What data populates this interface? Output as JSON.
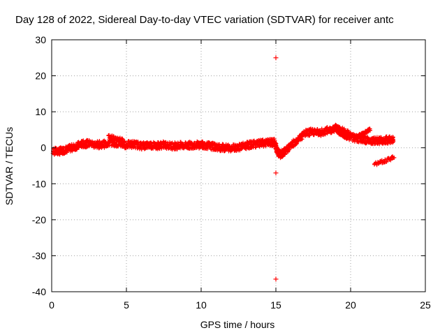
{
  "chart_data": {
    "type": "scatter",
    "title": "Day 128 of 2022, Sidereal Day-to-day VTEC variation (SDTVAR) for receiver antc",
    "xlabel": "GPS time / hours",
    "ylabel": "SDTVAR / TECUs",
    "xlim": [
      0,
      25
    ],
    "ylim": [
      -40,
      30
    ],
    "xticks": [
      0,
      5,
      10,
      15,
      20,
      25
    ],
    "yticks": [
      -40,
      -30,
      -20,
      -10,
      0,
      10,
      20,
      30
    ],
    "grid": true,
    "marker": "+",
    "colors": {
      "series": "#ff0000",
      "grid": "#a0a0a0",
      "axis": "#000000"
    },
    "series": [
      {
        "name": "SDTVAR",
        "band_centerline": [
          [
            0.1,
            -1.0
          ],
          [
            0.5,
            -1.0
          ],
          [
            1.0,
            -0.5
          ],
          [
            1.5,
            0.2
          ],
          [
            2.0,
            1.0
          ],
          [
            2.5,
            1.2
          ],
          [
            3.0,
            0.8
          ],
          [
            3.5,
            1.0
          ],
          [
            4.0,
            1.5
          ],
          [
            4.5,
            1.2
          ],
          [
            5.0,
            0.8
          ],
          [
            5.5,
            1.0
          ],
          [
            6.0,
            0.5
          ],
          [
            6.5,
            0.8
          ],
          [
            7.0,
            0.6
          ],
          [
            7.5,
            0.8
          ],
          [
            8.0,
            0.5
          ],
          [
            8.5,
            0.6
          ],
          [
            9.0,
            0.6
          ],
          [
            9.5,
            0.8
          ],
          [
            10.0,
            0.8
          ],
          [
            10.5,
            0.6
          ],
          [
            11.0,
            0.2
          ],
          [
            11.5,
            0.0
          ],
          [
            12.0,
            0.0
          ],
          [
            12.5,
            0.2
          ],
          [
            13.0,
            0.6
          ],
          [
            13.5,
            1.0
          ],
          [
            14.0,
            1.2
          ],
          [
            14.5,
            1.4
          ],
          [
            14.9,
            1.5
          ],
          [
            15.1,
            -1.0
          ],
          [
            15.3,
            -2.0
          ],
          [
            15.6,
            -1.0
          ],
          [
            16.0,
            0.5
          ],
          [
            16.5,
            2.5
          ],
          [
            17.0,
            4.0
          ],
          [
            17.5,
            4.5
          ],
          [
            18.0,
            4.2
          ],
          [
            18.5,
            4.8
          ],
          [
            19.0,
            5.5
          ],
          [
            19.3,
            4.5
          ],
          [
            19.6,
            3.5
          ],
          [
            20.0,
            3.0
          ],
          [
            20.5,
            2.5
          ],
          [
            21.0,
            2.2
          ],
          [
            21.5,
            2.0
          ],
          [
            22.0,
            2.0
          ],
          [
            22.5,
            2.2
          ],
          [
            22.9,
            2.0
          ]
        ],
        "segments": [
          {
            "points": [
              [
                3.8,
                3.2
              ],
              [
                4.8,
                2.0
              ]
            ]
          },
          {
            "points": [
              [
                19.0,
                6.0
              ],
              [
                20.0,
                4.0
              ]
            ]
          },
          {
            "points": [
              [
                20.5,
                3.0
              ],
              [
                21.3,
                5.0
              ]
            ]
          },
          {
            "points": [
              [
                21.6,
                -4.5
              ],
              [
                22.9,
                -2.8
              ]
            ]
          }
        ],
        "outliers": [
          [
            15.0,
            25.0
          ],
          [
            15.0,
            -7.0
          ],
          [
            15.0,
            -36.5
          ]
        ]
      }
    ]
  }
}
